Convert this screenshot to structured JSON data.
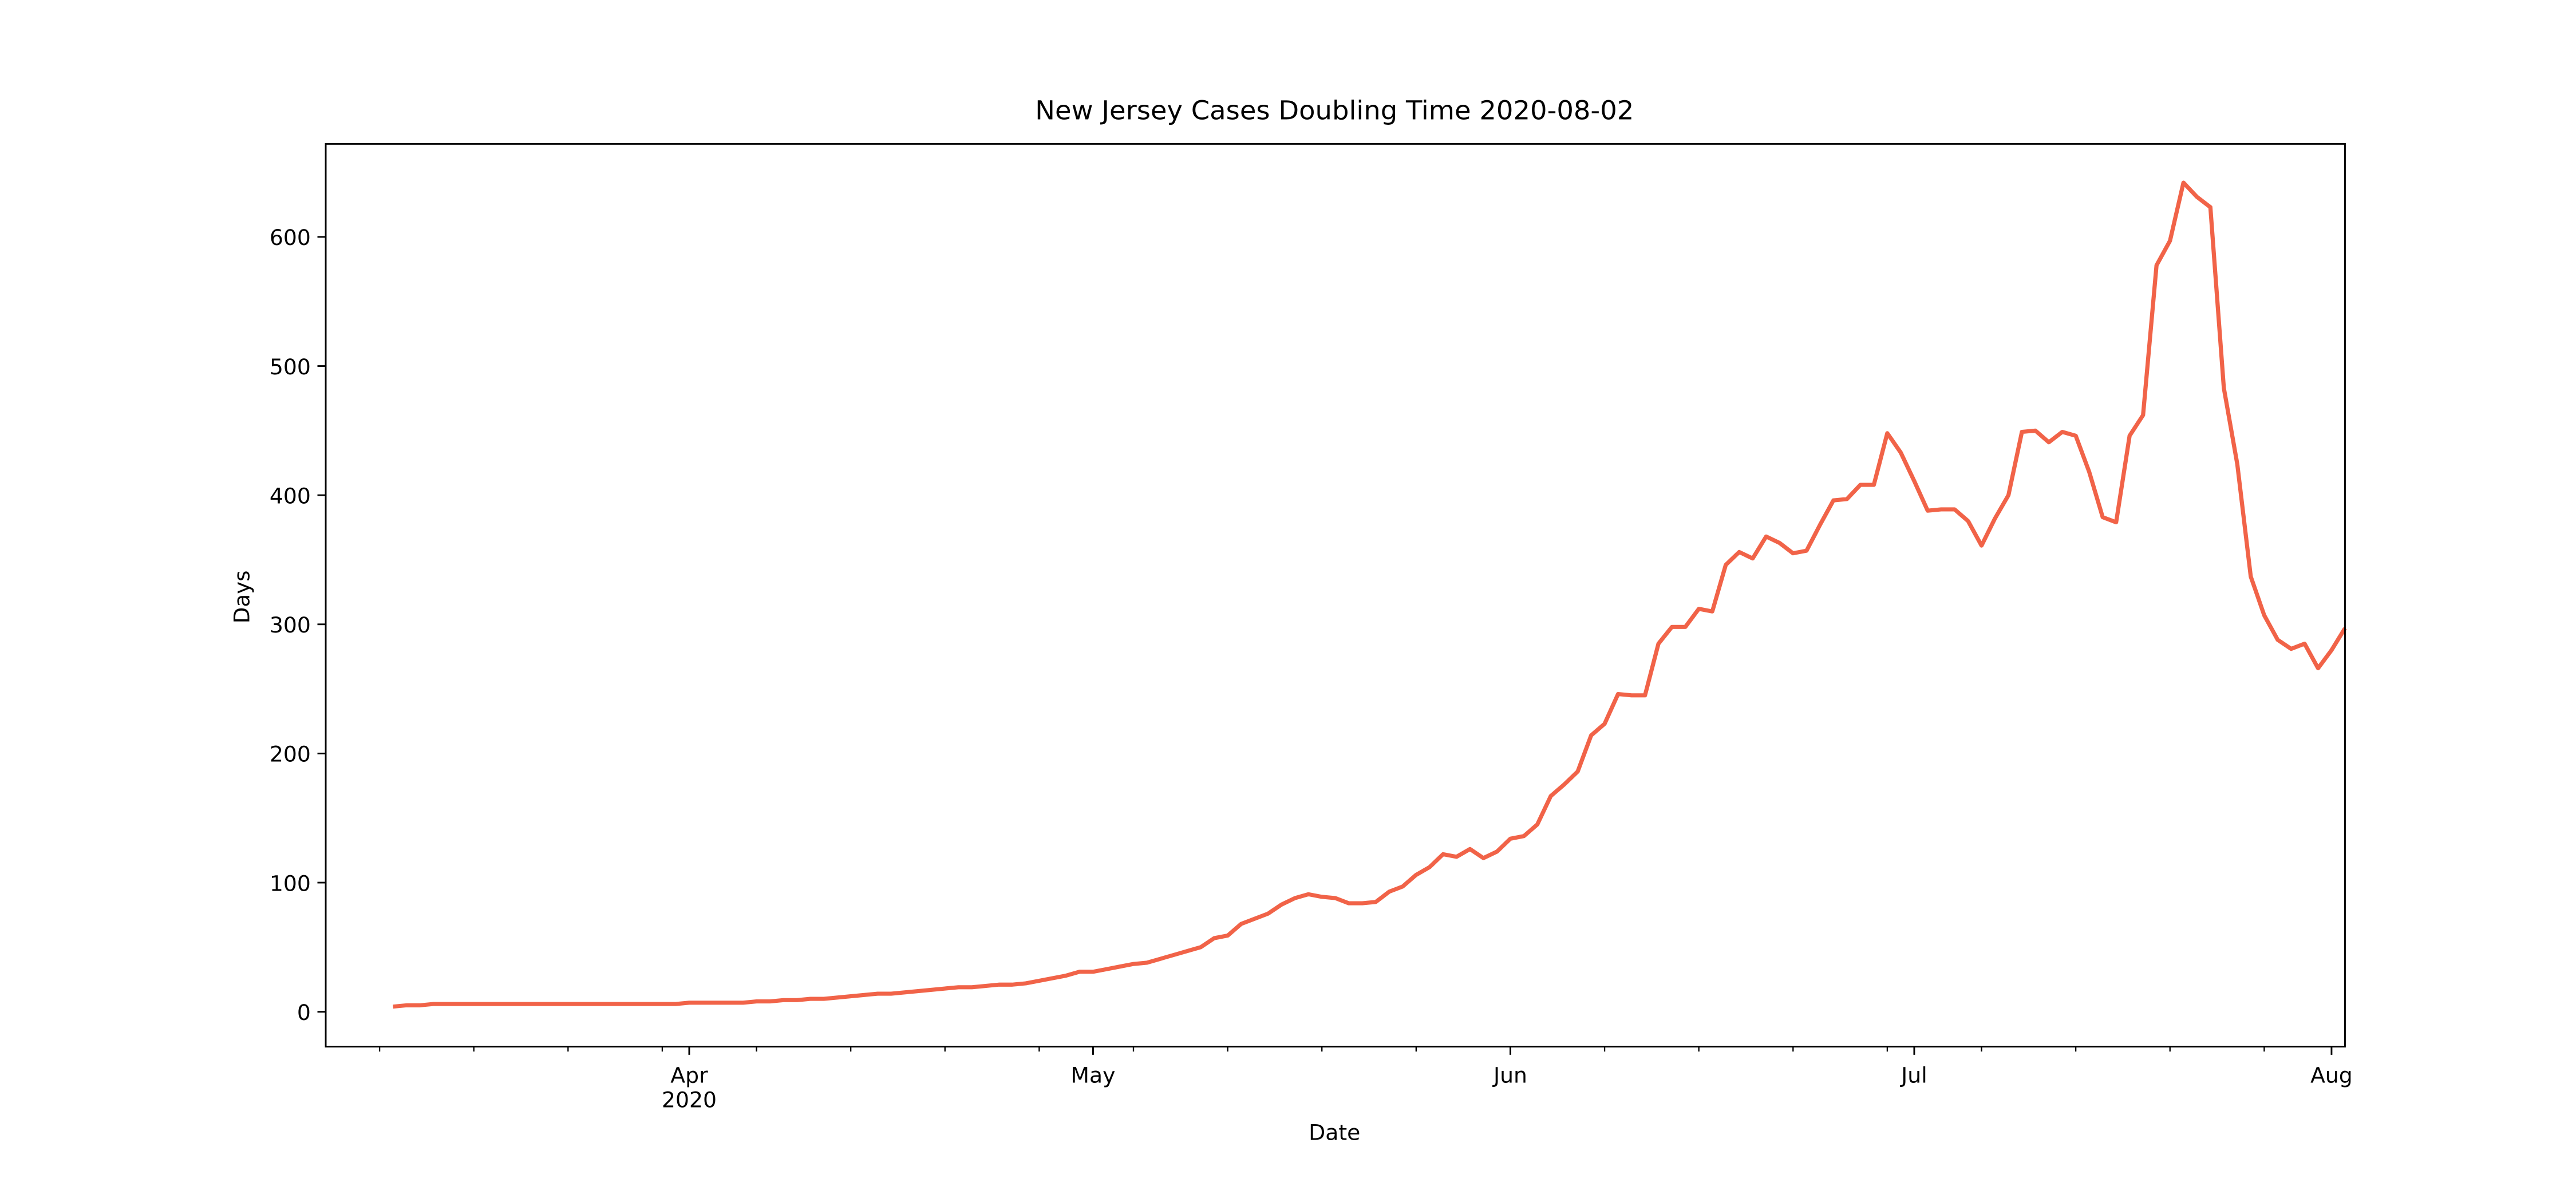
{
  "chart_data": {
    "type": "line",
    "title": "New Jersey Cases Doubling Time 2020-08-02",
    "x_label": "Date",
    "y_label": "Days",
    "xlim": [
      "2020-03-05",
      "2020-08-02"
    ],
    "ylim": [
      -27,
      672
    ],
    "yticks": [
      0,
      100,
      200,
      300,
      400,
      500,
      600
    ],
    "xticks": [
      {
        "value": "2020-04-01",
        "label": "Apr",
        "sublabel": "2020"
      },
      {
        "value": "2020-05-01",
        "label": "May"
      },
      {
        "value": "2020-06-01",
        "label": "Jun"
      },
      {
        "value": "2020-07-01",
        "label": "Jul"
      },
      {
        "value": "2020-08-01",
        "label": "Aug"
      }
    ],
    "x_minor_ticks": [
      "2020-03-09",
      "2020-03-16",
      "2020-03-23",
      "2020-03-30",
      "2020-04-06",
      "2020-04-13",
      "2020-04-20",
      "2020-04-27",
      "2020-05-04",
      "2020-05-11",
      "2020-05-18",
      "2020-05-25",
      "2020-06-08",
      "2020-06-15",
      "2020-06-22",
      "2020-06-29",
      "2020-07-06",
      "2020-07-13",
      "2020-07-20",
      "2020-07-27"
    ],
    "grid": false,
    "x": [
      "2020-03-10",
      "2020-03-11",
      "2020-03-12",
      "2020-03-13",
      "2020-03-14",
      "2020-03-15",
      "2020-03-16",
      "2020-03-17",
      "2020-03-18",
      "2020-03-19",
      "2020-03-20",
      "2020-03-21",
      "2020-03-22",
      "2020-03-23",
      "2020-03-24",
      "2020-03-25",
      "2020-03-26",
      "2020-03-27",
      "2020-03-28",
      "2020-03-29",
      "2020-03-30",
      "2020-03-31",
      "2020-04-01",
      "2020-04-02",
      "2020-04-03",
      "2020-04-04",
      "2020-04-05",
      "2020-04-06",
      "2020-04-07",
      "2020-04-08",
      "2020-04-09",
      "2020-04-10",
      "2020-04-11",
      "2020-04-12",
      "2020-04-13",
      "2020-04-14",
      "2020-04-15",
      "2020-04-16",
      "2020-04-17",
      "2020-04-18",
      "2020-04-19",
      "2020-04-20",
      "2020-04-21",
      "2020-04-22",
      "2020-04-23",
      "2020-04-24",
      "2020-04-25",
      "2020-04-26",
      "2020-04-27",
      "2020-04-28",
      "2020-04-29",
      "2020-04-30",
      "2020-05-01",
      "2020-05-02",
      "2020-05-03",
      "2020-05-04",
      "2020-05-05",
      "2020-05-06",
      "2020-05-07",
      "2020-05-08",
      "2020-05-09",
      "2020-05-10",
      "2020-05-11",
      "2020-05-12",
      "2020-05-13",
      "2020-05-14",
      "2020-05-15",
      "2020-05-16",
      "2020-05-17",
      "2020-05-18",
      "2020-05-19",
      "2020-05-20",
      "2020-05-21",
      "2020-05-22",
      "2020-05-23",
      "2020-05-24",
      "2020-05-25",
      "2020-05-26",
      "2020-05-27",
      "2020-05-28",
      "2020-05-29",
      "2020-05-30",
      "2020-05-31",
      "2020-06-01",
      "2020-06-02",
      "2020-06-03",
      "2020-06-04",
      "2020-06-05",
      "2020-06-06",
      "2020-06-07",
      "2020-06-08",
      "2020-06-09",
      "2020-06-10",
      "2020-06-11",
      "2020-06-12",
      "2020-06-13",
      "2020-06-14",
      "2020-06-15",
      "2020-06-16",
      "2020-06-17",
      "2020-06-18",
      "2020-06-19",
      "2020-06-20",
      "2020-06-21",
      "2020-06-22",
      "2020-06-23",
      "2020-06-24",
      "2020-06-25",
      "2020-06-26",
      "2020-06-27",
      "2020-06-28",
      "2020-06-29",
      "2020-06-30",
      "2020-07-01",
      "2020-07-02",
      "2020-07-03",
      "2020-07-04",
      "2020-07-05",
      "2020-07-06",
      "2020-07-07",
      "2020-07-08",
      "2020-07-09",
      "2020-07-10",
      "2020-07-11",
      "2020-07-12",
      "2020-07-13",
      "2020-07-14",
      "2020-07-15",
      "2020-07-16",
      "2020-07-17",
      "2020-07-18",
      "2020-07-19",
      "2020-07-20",
      "2020-07-21",
      "2020-07-22",
      "2020-07-23",
      "2020-07-24",
      "2020-07-25",
      "2020-07-26",
      "2020-07-27",
      "2020-07-28",
      "2020-07-29",
      "2020-07-30",
      "2020-07-31",
      "2020-08-01",
      "2020-08-02"
    ],
    "series": [
      {
        "color": "#f16348",
        "values": [
          4,
          5,
          5,
          6,
          6,
          6,
          6,
          6,
          6,
          6,
          6,
          6,
          6,
          6,
          6,
          6,
          6,
          6,
          6,
          6,
          6,
          6,
          7,
          7,
          7,
          7,
          7,
          8,
          8,
          9,
          9,
          10,
          10,
          11,
          12,
          13,
          14,
          14,
          15,
          16,
          17,
          18,
          19,
          19,
          20,
          21,
          21,
          22,
          24,
          26,
          28,
          31,
          31,
          33,
          35,
          37,
          38,
          41,
          44,
          47,
          50,
          57,
          59,
          68,
          72,
          76,
          83,
          88,
          91,
          89,
          88,
          84,
          84,
          85,
          93,
          97,
          106,
          112,
          122,
          120,
          126,
          119,
          124,
          134,
          136,
          145,
          167,
          176,
          186,
          214,
          223,
          246,
          245,
          245,
          285,
          298,
          298,
          312,
          310,
          346,
          356,
          351,
          368,
          363,
          355,
          357,
          377,
          396,
          397,
          408,
          408,
          448,
          433,
          411,
          388,
          389,
          389,
          380,
          361,
          382,
          400,
          449,
          450,
          441,
          449,
          446,
          418,
          383,
          379,
          446,
          462,
          578,
          597,
          642,
          631,
          623,
          483,
          424,
          337,
          307,
          288,
          281,
          285,
          266,
          280,
          297
        ]
      }
    ]
  }
}
